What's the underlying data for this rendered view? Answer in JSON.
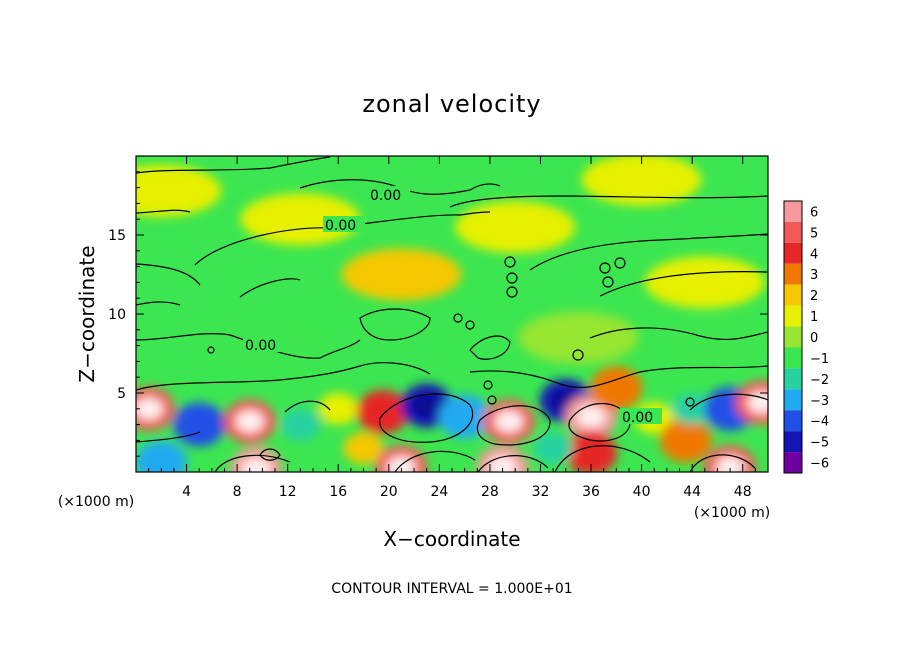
{
  "chart_data": {
    "type": "heatmap",
    "title": "zonal velocity",
    "xlabel": "X−coordinate",
    "ylabel": "Z−coordinate",
    "x_unit": "(×1000 m)",
    "x_unit_right": "(×1000 m)",
    "xlim": [
      0,
      50
    ],
    "ylim": [
      0,
      20
    ],
    "x_ticks": [
      4,
      8,
      12,
      16,
      20,
      24,
      28,
      32,
      36,
      40,
      44,
      48
    ],
    "x_tick_labels": [
      "4",
      "8",
      "12",
      "16",
      "20",
      "24",
      "28",
      "32",
      "36",
      "40",
      "44",
      "48"
    ],
    "y_ticks": [
      5,
      10,
      15
    ],
    "y_tick_labels": [
      "5",
      "10",
      "15"
    ],
    "footer": "CONTOUR INTERVAL = 1.000E+01",
    "contour_label": "0.00",
    "colorbar": {
      "levels": [
        6,
        5,
        4,
        3,
        2,
        1,
        0,
        -1,
        -2,
        -3,
        -4,
        -5,
        -6
      ],
      "labels": [
        "6",
        "5",
        "4",
        "3",
        "2",
        "1",
        "0",
        "−1",
        "−2",
        "−3",
        "−4",
        "−5",
        "−6"
      ],
      "colors": [
        "#f49a9a",
        "#f25a5a",
        "#e62828",
        "#f07800",
        "#f5c800",
        "#e6f000",
        "#96e632",
        "#3ce650",
        "#28d2a0",
        "#20aaf0",
        "#2050e6",
        "#1414b4",
        "#6e00a0"
      ]
    },
    "background_color": "#3ce650",
    "features": [
      {
        "x": 1,
        "z": 4.0,
        "value": 5
      },
      {
        "x": 5,
        "z": 3.0,
        "value": -4
      },
      {
        "x": 9,
        "z": 3.2,
        "value": 5
      },
      {
        "x": 9.5,
        "z": 0.2,
        "value": 6
      },
      {
        "x": 2,
        "z": 0.6,
        "value": -3
      },
      {
        "x": 13,
        "z": 3.0,
        "value": -2
      },
      {
        "x": 16,
        "z": 4.0,
        "value": 1
      },
      {
        "x": 19.5,
        "z": 3.8,
        "value": 4
      },
      {
        "x": 18,
        "z": 1.5,
        "value": 2
      },
      {
        "x": 21,
        "z": 0.3,
        "value": 5
      },
      {
        "x": 23,
        "z": 4.2,
        "value": -5
      },
      {
        "x": 26,
        "z": 3.5,
        "value": -3
      },
      {
        "x": 29.5,
        "z": 3.2,
        "value": 5
      },
      {
        "x": 29,
        "z": 0.3,
        "value": 6
      },
      {
        "x": 34,
        "z": 4.5,
        "value": -5
      },
      {
        "x": 36,
        "z": 3.5,
        "value": 6
      },
      {
        "x": 36,
        "z": 1.2,
        "value": 4
      },
      {
        "x": 38,
        "z": 5.3,
        "value": 3
      },
      {
        "x": 41,
        "z": 3.4,
        "value": 1
      },
      {
        "x": 43.5,
        "z": 2.0,
        "value": 3
      },
      {
        "x": 44,
        "z": 4.0,
        "value": -2
      },
      {
        "x": 47,
        "z": 4.0,
        "value": -4
      },
      {
        "x": 47,
        "z": 0.3,
        "value": 5
      },
      {
        "x": 49.5,
        "z": 4.4,
        "value": 5
      },
      {
        "x": 33,
        "z": 1.5,
        "value": -2
      },
      {
        "x": 2,
        "z": 17.8,
        "value": 1
      },
      {
        "x": 13,
        "z": 16.0,
        "value": 1
      },
      {
        "x": 21,
        "z": 12.5,
        "value": 2
      },
      {
        "x": 30,
        "z": 15.5,
        "value": 1
      },
      {
        "x": 45,
        "z": 12.0,
        "value": 1
      },
      {
        "x": 35,
        "z": 8.5,
        "value": 0
      },
      {
        "x": 10,
        "z": 8.0,
        "value": -1
      },
      {
        "x": 40,
        "z": 18.5,
        "value": 1
      },
      {
        "x": 46,
        "z": 8.0,
        "value": -1
      }
    ]
  }
}
